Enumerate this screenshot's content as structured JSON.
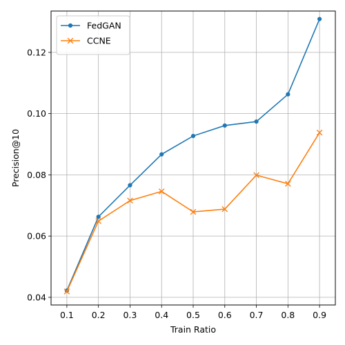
{
  "chart_data": {
    "type": "line",
    "title": "",
    "xlabel": "Train Ratio",
    "ylabel": "Precision@10",
    "x": [
      0.1,
      0.2,
      0.3,
      0.4,
      0.5,
      0.6,
      0.7,
      0.8,
      0.9
    ],
    "x_ticks": [
      "0.1",
      "0.2",
      "0.3",
      "0.4",
      "0.5",
      "0.6",
      "0.7",
      "0.8",
      "0.9"
    ],
    "y_ticks": [
      "0.04",
      "0.06",
      "0.08",
      "0.10",
      "0.12"
    ],
    "y_tick_values": [
      0.04,
      0.06,
      0.08,
      0.1,
      0.12
    ],
    "xlim": [
      0.05,
      0.95
    ],
    "ylim": [
      0.0375,
      0.1335
    ],
    "grid": true,
    "legend_position": "top-left",
    "series": [
      {
        "name": "FedGAN",
        "color": "#1f77b4",
        "marker": "dot",
        "values": [
          0.0422,
          0.0663,
          0.0766,
          0.0867,
          0.0927,
          0.0961,
          0.0974,
          0.1063,
          0.1309
        ]
      },
      {
        "name": "CCNE",
        "color": "#ff7f0e",
        "marker": "x",
        "values": [
          0.0419,
          0.0649,
          0.0716,
          0.0746,
          0.0679,
          0.0688,
          0.0799,
          0.0771,
          0.0938
        ]
      }
    ]
  }
}
